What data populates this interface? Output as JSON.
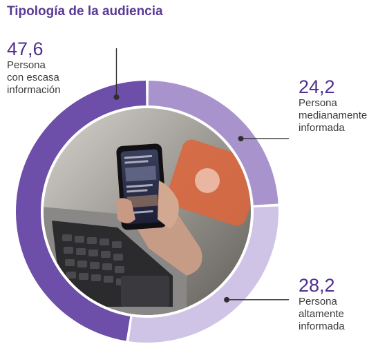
{
  "title": "Tipología de la audiencia",
  "chart_data": {
    "type": "pie",
    "variant": "donut",
    "title": "Tipología de la audiencia",
    "categories": [
      "Persona con escasa información",
      "Persona medianamente informada",
      "Persona altamente informada"
    ],
    "values": [
      47.6,
      24.2,
      28.2
    ],
    "value_labels": [
      "47,6",
      "24,2",
      "28,2"
    ],
    "label_lines": [
      [
        "Persona",
        "con escasa",
        "información"
      ],
      [
        "Persona",
        "medianamente",
        "informada"
      ],
      [
        "Persona",
        "altamente",
        "informada"
      ]
    ],
    "colors": [
      "#6d4ea8",
      "#a893cc",
      "#cfc4e6"
    ],
    "center_image": "person holding smartphone over laptop keyboard"
  }
}
